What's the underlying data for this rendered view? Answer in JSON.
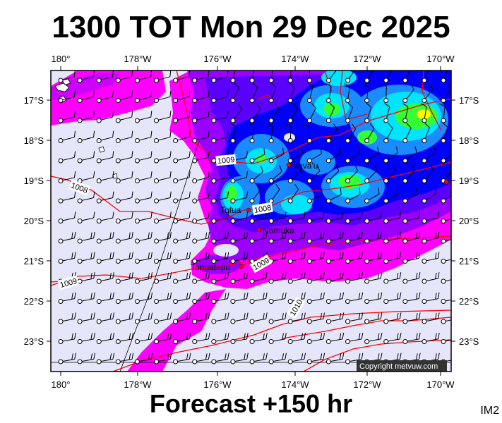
{
  "header": {
    "title": "1300 TOT Mon 29 Dec 2025"
  },
  "footer": {
    "forecast": "Forecast +150 hr",
    "code": "IM2"
  },
  "copyright": "Copyright metvuw.com",
  "axes": {
    "lon_labels": [
      "180°",
      "178°W",
      "176°W",
      "174°W",
      "172°W",
      "170°W"
    ],
    "lat_labels": [
      "17°S",
      "18°S",
      "19°S",
      "20°S",
      "21°S",
      "22°S",
      "23°S"
    ]
  },
  "places": [
    {
      "name": "Vava'u",
      "lon": -174.0,
      "lat": -18.65
    },
    {
      "name": "Tofua",
      "lon": -175.05,
      "lat": -19.75
    },
    {
      "name": "Nomuka",
      "lon": -174.8,
      "lat": -20.25
    },
    {
      "name": "Tongatapu",
      "lon": -175.2,
      "lat": -21.15
    }
  ],
  "isobar_labels": [
    "1009",
    "1008",
    "1008",
    "1009",
    "1009",
    "1010"
  ],
  "colors": {
    "background": "#e6e6fa",
    "magenta": "#ff00ff",
    "purple": "#9b00ff",
    "violet": "#5a00ff",
    "blue": "#0000ff",
    "lightblue": "#1a8cff",
    "cyan": "#00e5ff",
    "green": "#33ff33",
    "yellow": "#ffff00",
    "isobar": "#ff0000"
  }
}
